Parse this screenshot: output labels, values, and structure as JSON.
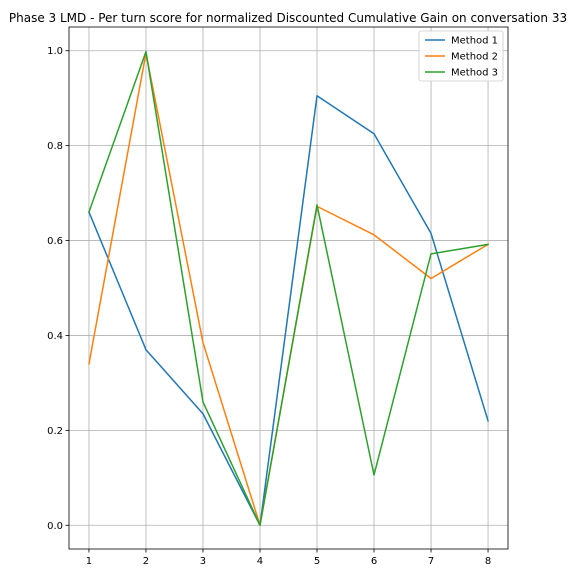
{
  "chart_data": {
    "type": "line",
    "title": "Phase 3 LMD - Per turn score for normalized Discounted Cumulative Gain on conversation 33",
    "xlabel": "",
    "ylabel": "",
    "x": [
      1,
      2,
      3,
      4,
      5,
      6,
      7,
      8
    ],
    "xticks": [
      1,
      2,
      3,
      4,
      5,
      6,
      7,
      8
    ],
    "xlim": [
      0.65,
      8.35
    ],
    "yticks": [
      0.0,
      0.2,
      0.4,
      0.6,
      0.8,
      1.0
    ],
    "ylim": [
      -0.05,
      1.05
    ],
    "grid": true,
    "legend_position": "top-right",
    "series": [
      {
        "name": "Method 1",
        "color": "#1f77b4",
        "values": [
          0.66,
          0.37,
          0.235,
          0.0,
          0.905,
          0.825,
          0.615,
          0.22
        ]
      },
      {
        "name": "Method 2",
        "color": "#ff7f0e",
        "values": [
          0.34,
          0.995,
          0.385,
          0.0,
          0.672,
          0.612,
          0.52,
          0.592
        ]
      },
      {
        "name": "Method 3",
        "color": "#2ca02c",
        "values": [
          0.66,
          0.998,
          0.26,
          0.0,
          0.675,
          0.106,
          0.572,
          0.592
        ]
      }
    ]
  }
}
